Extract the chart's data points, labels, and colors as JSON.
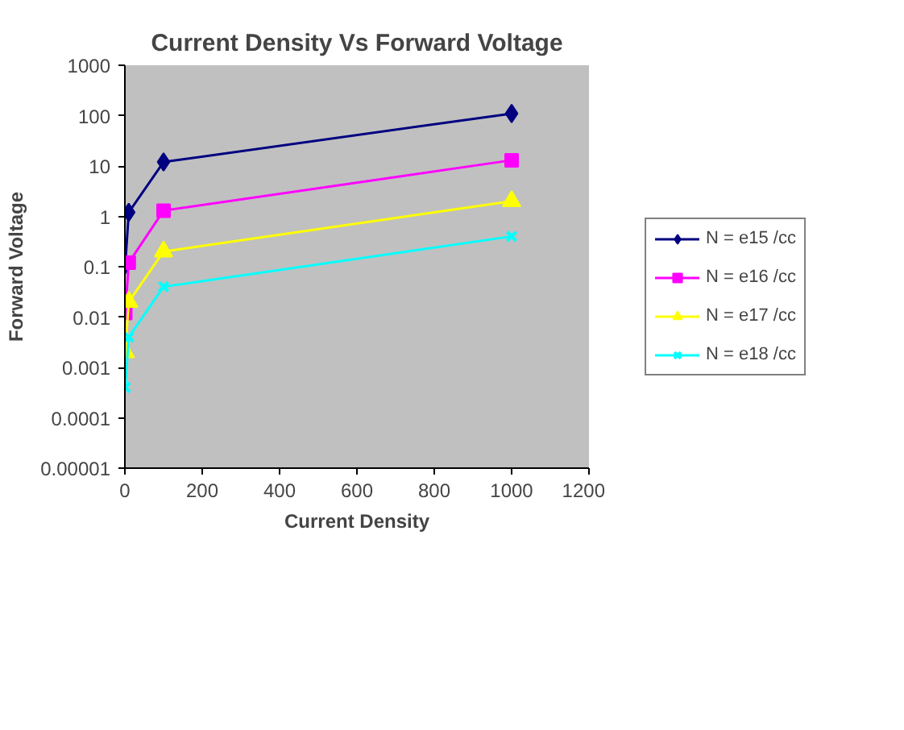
{
  "chart_data": {
    "type": "line",
    "title": "Current Density Vs Forward Voltage",
    "xlabel": "Current Density",
    "ylabel": "Forward Voltage",
    "log": "y",
    "xlim": [
      0,
      1200
    ],
    "xticks": [
      0,
      200,
      400,
      600,
      800,
      1000,
      1200
    ],
    "ylim": [
      1e-05,
      1000
    ],
    "yticks": [
      {
        "value": 1e-05,
        "label": "0.00001"
      },
      {
        "value": 0.0001,
        "label": "0.0001"
      },
      {
        "value": 0.001,
        "label": "0.001"
      },
      {
        "value": 0.01,
        "label": "0.01"
      },
      {
        "value": 0.1,
        "label": "0.1"
      },
      {
        "value": 1,
        "label": "1"
      },
      {
        "value": 10,
        "label": "10"
      },
      {
        "value": 100,
        "label": "100"
      },
      {
        "value": 1000,
        "label": "1000"
      }
    ],
    "grid": false,
    "legend": "right",
    "series": [
      {
        "name": "N = e15 /cc",
        "color": "#000080",
        "marker": "diamond",
        "x": [
          1,
          10,
          100,
          1000
        ],
        "values": [
          0.11,
          1.2,
          12,
          110
        ]
      },
      {
        "name": "N = e16 /cc",
        "color": "#ff00ff",
        "marker": "square",
        "x": [
          1,
          10,
          100,
          1000
        ],
        "values": [
          0.012,
          0.12,
          1.3,
          13
        ]
      },
      {
        "name": "N = e17 /cc",
        "color": "#ffff00",
        "marker": "triangle",
        "x": [
          1,
          10,
          100,
          1000
        ],
        "values": [
          0.002,
          0.02,
          0.2,
          2
        ]
      },
      {
        "name": "N = e18 /cc",
        "color": "#00ffff",
        "marker": "cross",
        "x": [
          1,
          10,
          100,
          1000
        ],
        "values": [
          0.0004,
          0.004,
          0.04,
          0.4
        ]
      }
    ]
  }
}
